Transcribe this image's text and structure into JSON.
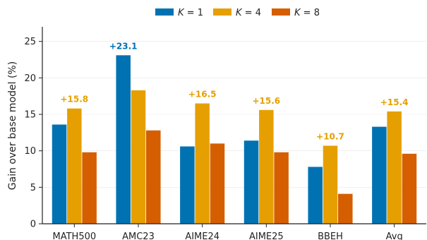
{
  "chart_data": {
    "type": "bar",
    "ylabel": "Gain over base model (%)",
    "ylim": [
      0,
      27
    ],
    "yticks": [
      0,
      5,
      10,
      15,
      20,
      25
    ],
    "grid": true,
    "legend_position": "top-center",
    "categories": [
      "MATH500",
      "AMC23",
      "AIME24",
      "AIME25",
      "BBEH",
      "Avg"
    ],
    "series": [
      {
        "name": "K = 1",
        "color": "#0072b2",
        "values": [
          13.6,
          23.1,
          10.6,
          11.4,
          7.8,
          13.3
        ]
      },
      {
        "name": "K = 4",
        "color": "#e69f00",
        "values": [
          15.8,
          18.3,
          16.5,
          15.6,
          10.7,
          15.4
        ]
      },
      {
        "name": "K = 8",
        "color": "#d55e00",
        "values": [
          9.8,
          12.8,
          11.0,
          9.8,
          4.1,
          9.6
        ]
      }
    ],
    "annotations": [
      {
        "category": "MATH500",
        "series": "K = 4",
        "text": "+15.8",
        "color": "#e69f00"
      },
      {
        "category": "AMC23",
        "series": "K = 1",
        "text": "+23.1",
        "color": "#0072b2"
      },
      {
        "category": "AIME24",
        "series": "K = 4",
        "text": "+16.5",
        "color": "#e69f00"
      },
      {
        "category": "AIME25",
        "series": "K = 4",
        "text": "+15.6",
        "color": "#e69f00"
      },
      {
        "category": "BBEH",
        "series": "K = 4",
        "text": "+10.7",
        "color": "#e69f00"
      },
      {
        "category": "Avg",
        "series": "K = 4",
        "text": "+15.4",
        "color": "#e69f00"
      }
    ]
  }
}
